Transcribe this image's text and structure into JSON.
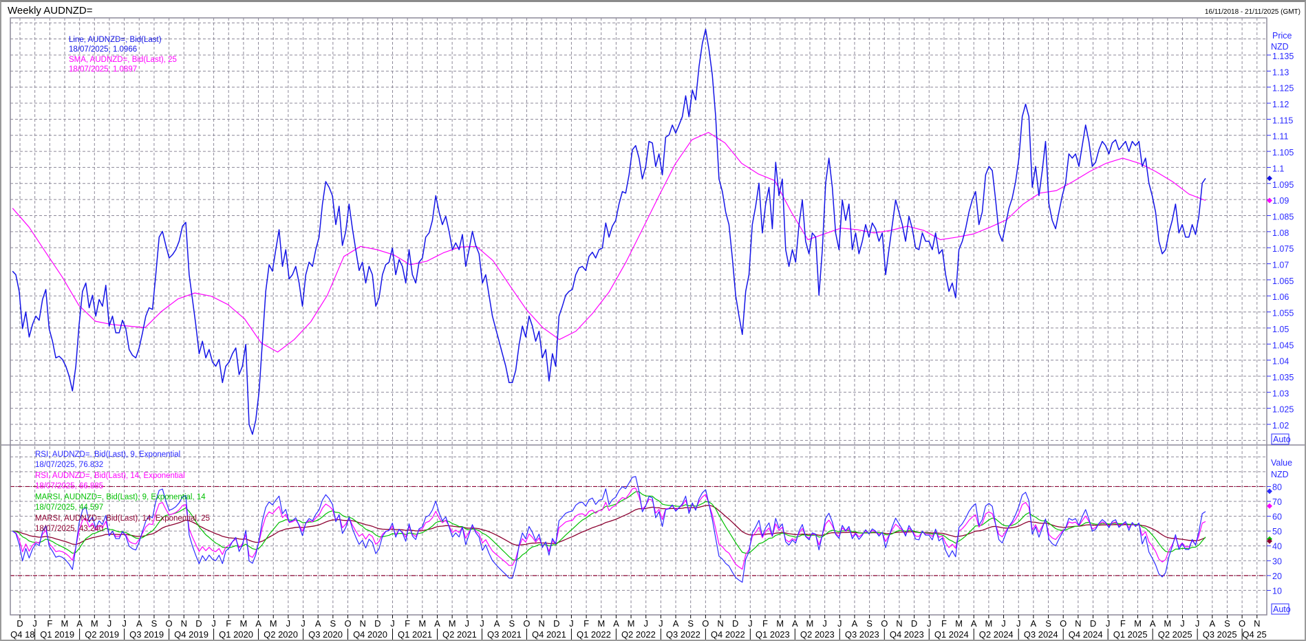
{
  "window": {
    "title": "Weekly AUDNZD=",
    "date_range": "16/11/2018 - 21/11/2025 (GMT)",
    "auto_label": "Auto"
  },
  "colors": {
    "price_line": "#1414e6",
    "sma": "#ff00ff",
    "rsi9": "#2b2bff",
    "rsi14": "#ff00ff",
    "marsi9": "#00c000",
    "marsi14": "#8b0030",
    "axis_text": "#2a2aff",
    "grid": "#8c8898",
    "level_lines": "#8b0030"
  },
  "x_axis": {
    "months": [
      "D",
      "J",
      "F",
      "M",
      "A",
      "M",
      "J",
      "J",
      "A",
      "S",
      "O",
      "N",
      "D",
      "J",
      "F",
      "M",
      "A",
      "M",
      "J",
      "J",
      "A",
      "S",
      "O",
      "N",
      "D",
      "J",
      "F",
      "M",
      "A",
      "M",
      "J",
      "J",
      "A",
      "S",
      "O",
      "N",
      "D",
      "J",
      "F",
      "M",
      "A",
      "M",
      "J",
      "J",
      "A",
      "S",
      "O",
      "N",
      "D",
      "J",
      "F",
      "M",
      "A",
      "M",
      "J",
      "J",
      "A",
      "S",
      "O",
      "N",
      "D",
      "J",
      "F",
      "M",
      "A",
      "M",
      "J",
      "J",
      "A",
      "S",
      "O",
      "N",
      "D",
      "J",
      "F",
      "M",
      "A",
      "M",
      "J",
      "J",
      "A",
      "S",
      "O",
      "N"
    ],
    "quarters": [
      "Q4 18",
      "Q1 2019",
      "Q2 2019",
      "Q3 2019",
      "Q4 2019",
      "Q1 2020",
      "Q2 2020",
      "Q3 2020",
      "Q4 2020",
      "Q1 2021",
      "Q2 2021",
      "Q3 2021",
      "Q4 2021",
      "Q1 2022",
      "Q2 2022",
      "Q3 2022",
      "Q4 2022",
      "Q1 2023",
      "Q2 2023",
      "Q3 2023",
      "Q4 2023",
      "Q1 2024",
      "Q2 2024",
      "Q3 2024",
      "Q4 2024",
      "Q1 2025",
      "Q2 2025",
      "Q3 2025",
      "Q4 25"
    ]
  },
  "chart_data": [
    {
      "type": "line",
      "panel": "price",
      "y_axis": {
        "title": "Price",
        "unit": "NZD",
        "ylim": [
          1.015,
          1.145
        ],
        "ticks": [
          "1.135",
          "1.13",
          "1.125",
          "1.12",
          "1.115",
          "1.11",
          "1.105",
          "1.1",
          "1.095",
          "1.09",
          "1.085",
          "1.08",
          "1.075",
          "1.07",
          "1.065",
          "1.06",
          "1.055",
          "1.05",
          "1.045",
          "1.04",
          "1.035",
          "1.03",
          "1.025",
          "1.02"
        ]
      },
      "grid": true,
      "legend": "top-left",
      "series": [
        {
          "name": "Line, AUDNZD=, Bid(Last)",
          "last_label": "18/07/2025, 1.0966",
          "last_value": 1.0966,
          "frequency": "weekly",
          "first_date": "16/11/2018",
          "last_date": "18/07/2025",
          "values": [
            1.0677,
            1.0666,
            1.0614,
            1.0498,
            1.055,
            1.0472,
            1.0511,
            1.0537,
            1.0524,
            1.0589,
            1.062,
            1.0498,
            1.0459,
            1.0407,
            1.0412,
            1.0402,
            1.0381,
            1.035,
            1.0304,
            1.0381,
            1.0511,
            1.0614,
            1.064,
            1.0563,
            1.0602,
            1.0537,
            1.0589,
            1.0568,
            1.0633,
            1.0506,
            1.0537,
            1.0485,
            1.0485,
            1.0524,
            1.0498,
            1.0433,
            1.0415,
            1.0407,
            1.0438,
            1.0485,
            1.0537,
            1.0563,
            1.0558,
            1.0666,
            1.0783,
            1.0801,
            1.0757,
            1.0718,
            1.0728,
            1.0744,
            1.077,
            1.0817,
            1.0829,
            1.0666,
            1.0589,
            1.0511,
            1.042,
            1.0459,
            1.0407,
            1.0433,
            1.0394,
            1.0381,
            1.0402,
            1.033,
            1.0381,
            1.0394,
            1.042,
            1.0438,
            1.0355,
            1.0381,
            1.0449,
            1.02,
            1.0169,
            1.0213,
            1.0304,
            1.0459,
            1.0614,
            1.0697,
            1.0677,
            1.0744,
            1.0806,
            1.0692,
            1.0744,
            1.0653,
            1.0666,
            1.0692,
            1.064,
            1.0568,
            1.0666,
            1.0705,
            1.0692,
            1.0744,
            1.0783,
            1.0886,
            1.0956,
            1.0938,
            1.0912,
            1.0822,
            1.0879,
            1.0757,
            1.0801,
            1.0886,
            1.0809,
            1.0744,
            1.0679,
            1.0705,
            1.064,
            1.0692,
            1.0666,
            1.0568,
            1.0594,
            1.0666,
            1.0697,
            1.0705,
            1.0749,
            1.0666,
            1.0713,
            1.0692,
            1.064,
            1.0744,
            1.0666,
            1.064,
            1.0705,
            1.0718,
            1.0783,
            1.0796,
            1.0835,
            1.0912,
            1.0861,
            1.0822,
            1.0848,
            1.0801,
            1.0744,
            1.0765,
            1.0744,
            1.0791,
            1.0692,
            1.0744,
            1.0801,
            1.0757,
            1.0731,
            1.064,
            1.0666,
            1.0602,
            1.0537,
            1.0498,
            1.0459,
            1.042,
            1.0381,
            1.033,
            1.033,
            1.0368,
            1.0446,
            1.0506,
            1.0472,
            1.0537,
            1.0506,
            1.0459,
            1.049,
            1.0407,
            1.0433,
            1.0335,
            1.042,
            1.0381,
            1.0537,
            1.0568,
            1.0602,
            1.0614,
            1.062,
            1.0666,
            1.0687,
            1.0692,
            1.0679,
            1.0723,
            1.0736,
            1.0718,
            1.0744,
            1.0749,
            1.0827,
            1.0783,
            1.0817,
            1.0835,
            1.0886,
            1.0925,
            1.092,
            1.0977,
            1.1055,
            1.1068,
            1.1029,
            1.0964,
            1.1003,
            1.1081,
            1.1076,
            1.1003,
            1.1042,
            1.0977,
            1.1094,
            1.1101,
            1.1132,
            1.1107,
            1.1132,
            1.1158,
            1.1223,
            1.1158,
            1.1241,
            1.121,
            1.1314,
            1.1386,
            1.143,
            1.1366,
            1.1288,
            1.1158,
            1.0964,
            1.0925,
            1.0861,
            1.0822,
            1.0718,
            1.0602,
            1.0537,
            1.048,
            1.0614,
            1.0666,
            1.0822,
            1.0879,
            1.0951,
            1.0796,
            1.0886,
            1.0938,
            1.0809,
            1.1016,
            1.0912,
            1.0964,
            1.0744,
            1.0692,
            1.0744,
            1.0705,
            1.0822,
            1.0899,
            1.077,
            1.0731,
            1.0796,
            1.0783,
            1.0602,
            1.0744,
            1.0951,
            1.1029,
            1.0938,
            1.0796,
            1.0744,
            1.0899,
            1.0835,
            1.0886,
            1.0744,
            1.0796,
            1.0731,
            1.077,
            1.0822,
            1.0783,
            1.0827,
            1.0809,
            1.077,
            1.0796,
            1.0666,
            1.0744,
            1.0822,
            1.0899,
            1.0861,
            1.0822,
            1.077,
            1.0848,
            1.0809,
            1.0749,
            1.0744,
            1.0796,
            1.077,
            1.077,
            1.0744,
            1.0796,
            1.0731,
            1.0744,
            1.0666,
            1.0614,
            1.064,
            1.0594,
            1.0744,
            1.077,
            1.0809,
            1.0861,
            1.0899,
            1.0925,
            1.0822,
            1.0861,
            1.0977,
            1.1003,
            1.099,
            1.0899,
            1.0796,
            1.077,
            1.0822,
            1.0873,
            1.0905,
            1.0956,
            1.1029,
            1.1158,
            1.1197,
            1.1158,
            1.0938,
            1.1003,
            1.0912,
            1.099,
            1.1081,
            1.0886,
            1.0835,
            1.0809,
            1.0861,
            1.0912,
            1.0951,
            1.1042,
            1.1029,
            1.1042,
            1.1003,
            1.1068,
            1.1132,
            1.1081,
            1.1003,
            1.1016,
            1.1055,
            1.1081,
            1.1068,
            1.1042,
            1.1076,
            1.1086,
            1.1055,
            1.1068,
            1.1081,
            1.105,
            1.1081,
            1.1068,
            1.1081,
            1.1003,
            1.1029,
            1.0951,
            1.0912,
            1.0861,
            1.077,
            1.0731,
            1.0744,
            1.0796,
            1.0835,
            1.0886,
            1.0796,
            1.0822,
            1.0783,
            1.0783,
            1.0822,
            1.0791,
            1.0848,
            1.0951,
            1.0966
          ]
        },
        {
          "name": "SMA, AUDNZD=, Bid(Last),  25",
          "last_label": "18/07/2025, 1.0897",
          "last_value": 1.0897,
          "first_date": "16/11/2018",
          "last_date": "18/07/2025",
          "values": [
            1.0873,
            1.0814,
            1.0736,
            1.0659,
            1.0571,
            1.0521,
            1.0511,
            1.0506,
            1.0501,
            1.0552,
            1.0591,
            1.0609,
            1.0599,
            1.0573,
            1.0529,
            1.0454,
            1.0425,
            1.0464,
            1.0519,
            1.0602,
            1.0723,
            1.0754,
            1.0744,
            1.0728,
            1.0697,
            1.0708,
            1.0734,
            1.0752,
            1.0754,
            1.071,
            1.0633,
            1.0558,
            1.0501,
            1.0464,
            1.049,
            1.0545,
            1.0612,
            1.0703,
            1.0806,
            1.091,
            1.1011,
            1.1086,
            1.1109,
            1.1076,
            1.1013,
            1.098,
            1.0959,
            1.0861,
            1.0775,
            1.0793,
            1.0811,
            1.0806,
            1.0796,
            1.0804,
            1.0817,
            1.0804,
            1.0775,
            1.0783,
            1.0793,
            1.0814,
            1.0837,
            1.0886,
            1.092,
            1.0928,
            1.0956,
            1.0987,
            1.1013,
            1.1029,
            1.1013,
            1.0987,
            1.0956,
            1.0917,
            1.0897
          ]
        }
      ]
    },
    {
      "type": "line",
      "panel": "indicator",
      "y_axis": {
        "title": "Value",
        "unit": "NZD",
        "ylim": [
          0,
          100
        ],
        "ticks": [
          "80",
          "70",
          "60",
          "50",
          "40",
          "30",
          "20",
          "10"
        ],
        "level_lines": [
          80,
          20
        ]
      },
      "grid": true,
      "legend": "top-left",
      "series": [
        {
          "name": "RSI, AUDNZD=, Bid(Last),  9, Exponential",
          "last_label": "18/07/2025, 76.832",
          "last_value": 76.832,
          "indicator": "RSI",
          "period": 9
        },
        {
          "name": "RSI, AUDNZD=, Bid(Last),  14, Exponential",
          "last_label": "18/07/2025, 66.885",
          "last_value": 66.885,
          "indicator": "RSI",
          "period": 14
        },
        {
          "name": "MARSI, AUDNZD=, Bid(Last),  9, Exponential, 14",
          "last_label": "18/07/2025, 44.597",
          "last_value": 44.597,
          "indicator": "MARSI",
          "period": 9,
          "ma_period": 14
        },
        {
          "name": "MARSI, AUDNZD=, Bid(Last),  14, Exponential, 25",
          "last_label": "18/07/2025, 43.240",
          "last_value": 43.24,
          "indicator": "MARSI",
          "period": 14,
          "ma_period": 25
        }
      ]
    }
  ]
}
